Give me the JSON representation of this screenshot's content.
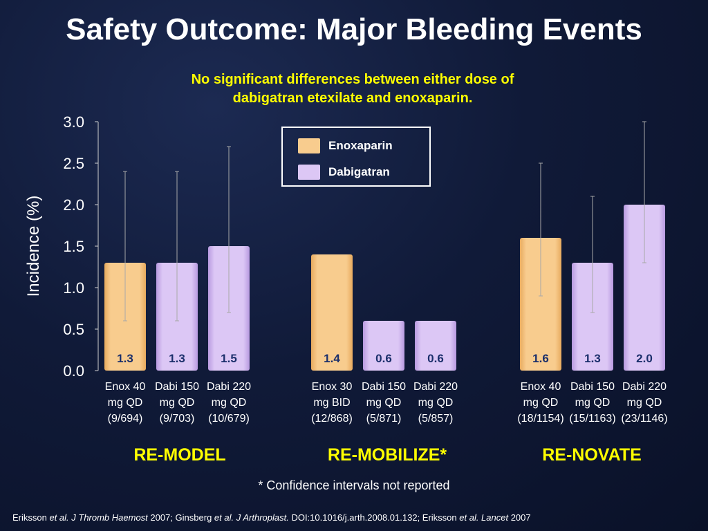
{
  "slide": {
    "title": "Safety Outcome: Major Bleeding Events",
    "subtitle_line1": "No significant differences between either dose of",
    "subtitle_line2": "dabigatran etexilate and enoxaparin.",
    "footnote": "* Confidence intervals not reported",
    "citation": {
      "p1": "Eriksson ",
      "p2": "et al. J Thromb Haemost",
      "p3": " 2007; Ginsberg ",
      "p4": "et al. J Arthroplast.",
      "p5": " DOI:10.1016/j.arth.2008.01.132; Eriksson ",
      "p6": "et al. Lancet",
      "p7": "  2007"
    }
  },
  "colors": {
    "enoxaparin": "#f8cc8e",
    "dabigatran": "#dcc7f5",
    "value_text": "#1b2f6b",
    "accent": "#ffff00",
    "error_bar": "#a8a8a8"
  },
  "chart_data": {
    "type": "bar",
    "ylabel": "Incidence (%)",
    "ylim": [
      0,
      3.0
    ],
    "yticks": [
      "0.0",
      "0.5",
      "1.0",
      "1.5",
      "2.0",
      "2.5",
      "3.0"
    ],
    "legend": [
      {
        "name": "Enoxaparin",
        "color": "#f8cc8e"
      },
      {
        "name": "Dabigatran",
        "color": "#dcc7f5"
      }
    ],
    "legend_position": "top-center",
    "groups": [
      {
        "name": "RE-MODEL",
        "bars": [
          {
            "label": [
              "Enox 40",
              "mg QD",
              "(9/694)"
            ],
            "series": "Enoxaparin",
            "value": 1.3,
            "display": "1.3",
            "ci": [
              0.6,
              2.4
            ]
          },
          {
            "label": [
              "Dabi 150",
              "mg QD",
              "(9/703)"
            ],
            "series": "Dabigatran",
            "value": 1.3,
            "display": "1.3",
            "ci": [
              0.6,
              2.4
            ]
          },
          {
            "label": [
              "Dabi 220",
              "mg QD",
              "(10/679)"
            ],
            "series": "Dabigatran",
            "value": 1.5,
            "display": "1.5",
            "ci": [
              0.7,
              2.7
            ]
          }
        ]
      },
      {
        "name": "RE-MOBILIZE*",
        "bars": [
          {
            "label": [
              "Enox 30",
              "mg BID",
              "(12/868)"
            ],
            "series": "Enoxaparin",
            "value": 1.4,
            "display": "1.4",
            "ci": null
          },
          {
            "label": [
              "Dabi 150",
              "mg QD",
              "(5/871)"
            ],
            "series": "Dabigatran",
            "value": 0.6,
            "display": "0.6",
            "ci": null
          },
          {
            "label": [
              "Dabi 220",
              "mg QD",
              "(5/857)"
            ],
            "series": "Dabigatran",
            "value": 0.6,
            "display": "0.6",
            "ci": null
          }
        ]
      },
      {
        "name": "RE-NOVATE",
        "bars": [
          {
            "label": [
              "Enox 40",
              "mg QD",
              "(18/1154)"
            ],
            "series": "Enoxaparin",
            "value": 1.6,
            "display": "1.6",
            "ci": [
              0.9,
              2.5
            ]
          },
          {
            "label": [
              "Dabi 150",
              "mg QD",
              "(15/1163)"
            ],
            "series": "Dabigatran",
            "value": 1.3,
            "display": "1.3",
            "ci": [
              0.7,
              2.1
            ]
          },
          {
            "label": [
              "Dabi 220",
              "mg QD",
              "(23/1146)"
            ],
            "series": "Dabigatran",
            "value": 2.0,
            "display": "2.0",
            "ci": [
              1.3,
              3.0
            ]
          }
        ]
      }
    ]
  }
}
